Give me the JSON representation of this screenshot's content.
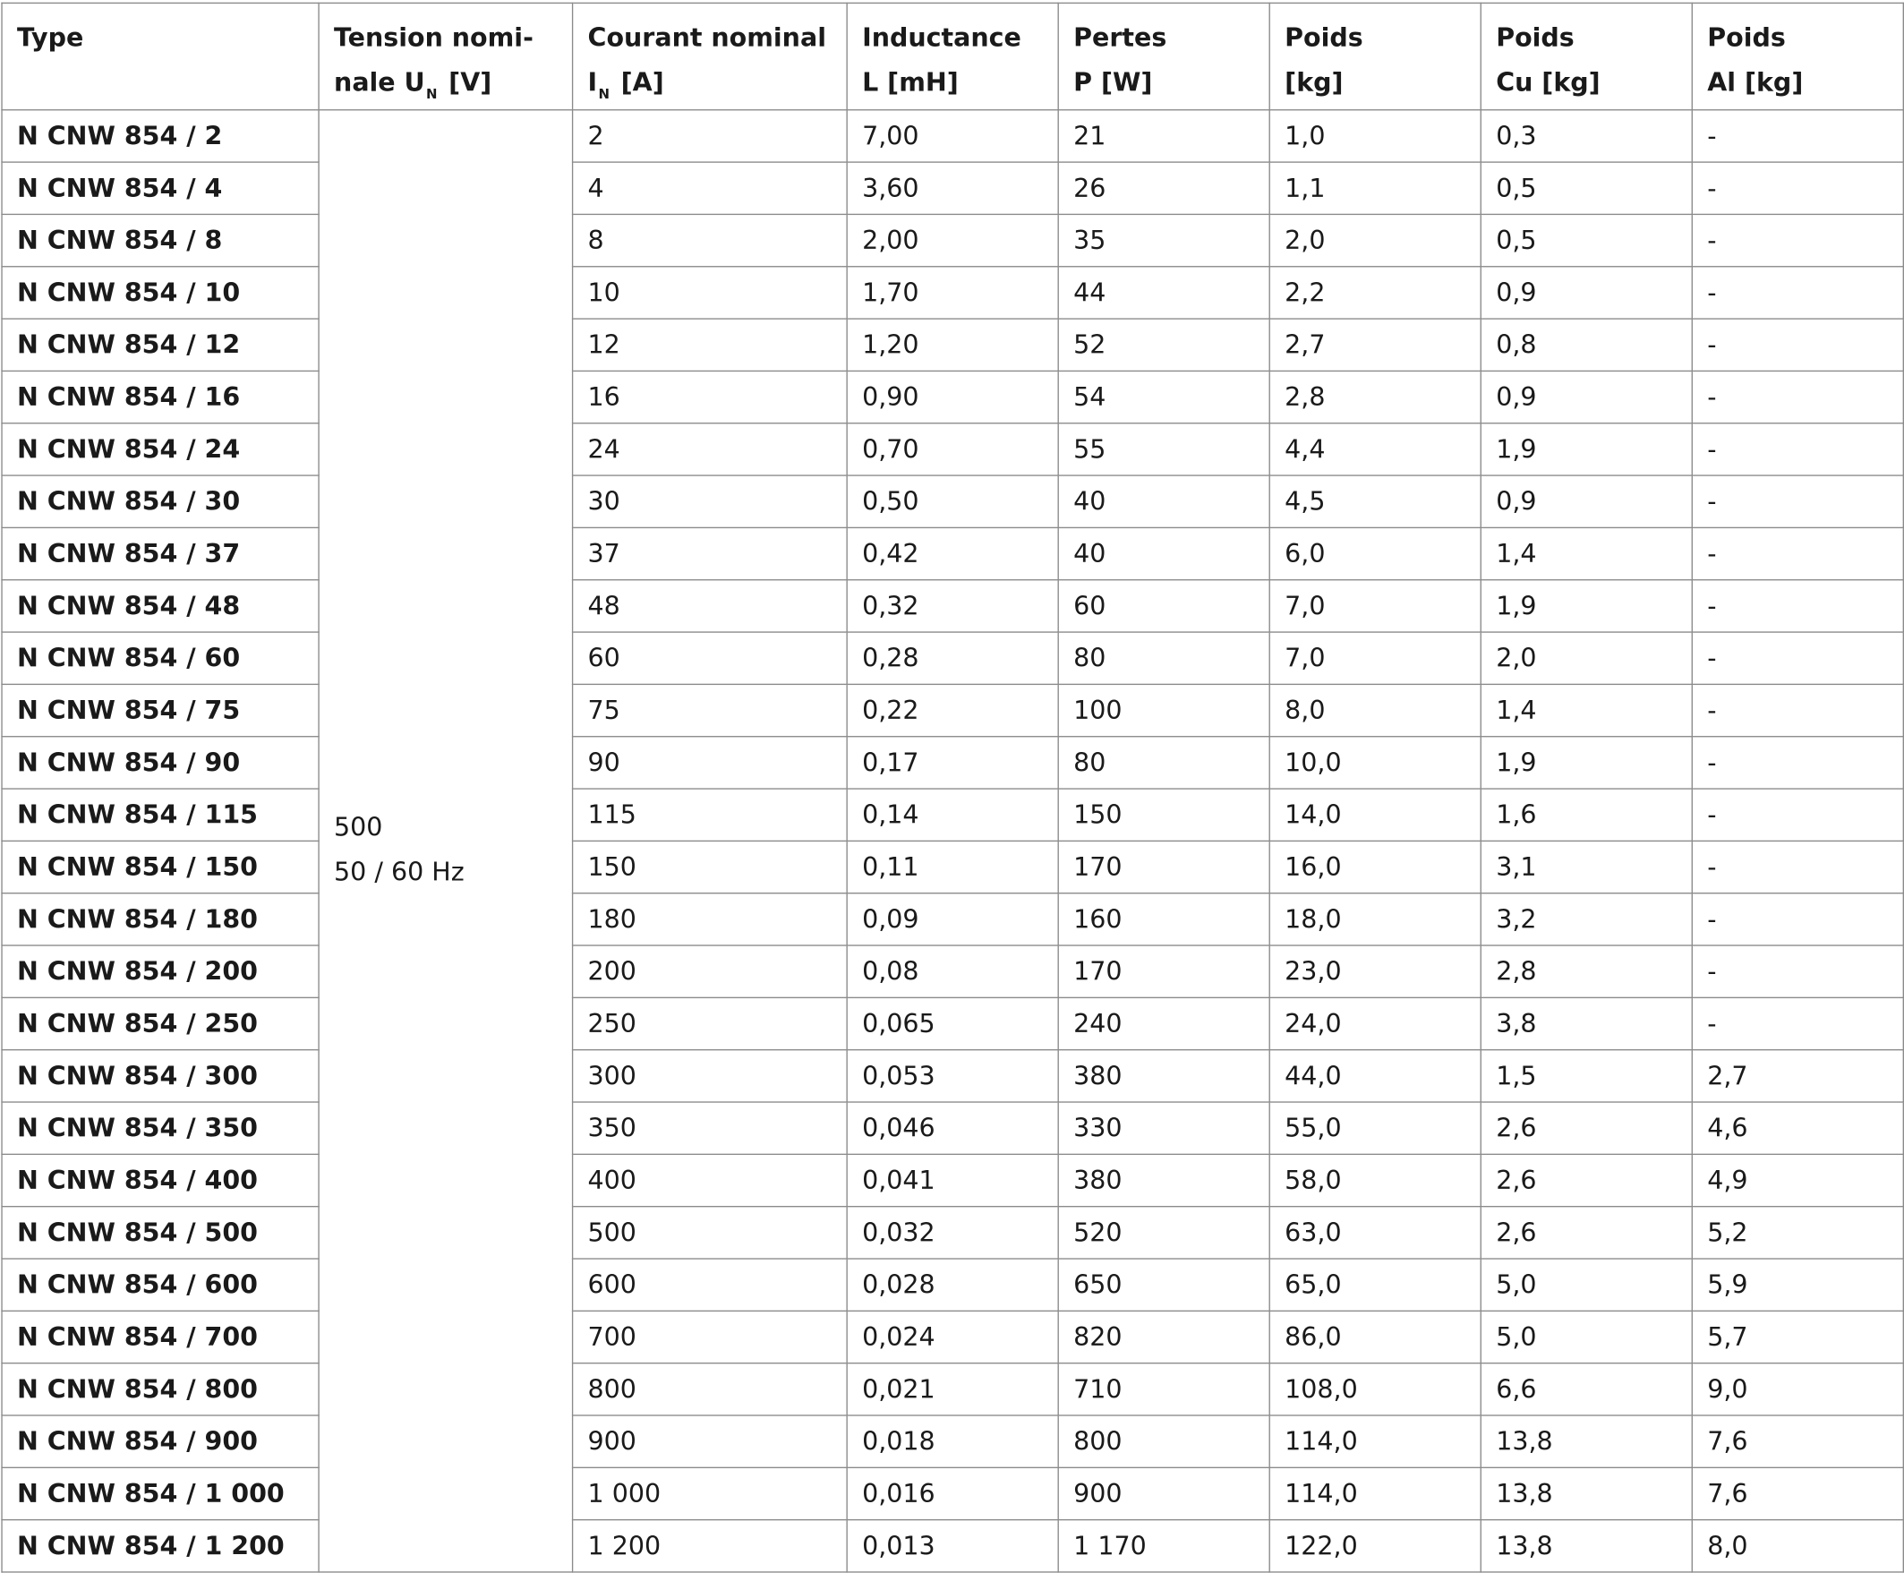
{
  "table": {
    "headers": {
      "type": "Type",
      "voltage_line1": "Tension nomi-",
      "voltage_line2_pre": "nale U",
      "voltage_line2_sub": "N",
      "voltage_line2_post": " [V]",
      "current_line1": "Courant nominal",
      "current_line2_pre": "I",
      "current_line2_sub": "N",
      "current_line2_post": " [A]",
      "inductance_line1": "Inductance",
      "inductance_line2": "L [mH]",
      "losses_line1": "Pertes",
      "losses_line2": "P [W]",
      "weight_line1": "Poids",
      "weight_line2": "[kg]",
      "weight_cu_line1": "Poids",
      "weight_cu_line2": "Cu [kg]",
      "weight_al_line1": "Poids",
      "weight_al_line2": "Al [kg]"
    },
    "voltage_value": "500",
    "voltage_frequency": "50 / 60 Hz",
    "rows": [
      {
        "type": "N CNW 854 / 2",
        "current": "2",
        "inductance": "7,00",
        "losses": "21",
        "weight": "1,0",
        "cu": "0,3",
        "al": "-"
      },
      {
        "type": "N CNW 854 / 4",
        "current": "4",
        "inductance": "3,60",
        "losses": "26",
        "weight": "1,1",
        "cu": "0,5",
        "al": "-"
      },
      {
        "type": "N CNW 854 / 8",
        "current": "8",
        "inductance": "2,00",
        "losses": "35",
        "weight": "2,0",
        "cu": "0,5",
        "al": "-"
      },
      {
        "type": "N CNW 854 / 10",
        "current": "10",
        "inductance": "1,70",
        "losses": "44",
        "weight": "2,2",
        "cu": "0,9",
        "al": "-"
      },
      {
        "type": "N CNW 854 / 12",
        "current": "12",
        "inductance": "1,20",
        "losses": "52",
        "weight": "2,7",
        "cu": "0,8",
        "al": "-"
      },
      {
        "type": "N CNW 854 / 16",
        "current": "16",
        "inductance": "0,90",
        "losses": "54",
        "weight": "2,8",
        "cu": "0,9",
        "al": "-"
      },
      {
        "type": "N CNW 854 / 24",
        "current": "24",
        "inductance": "0,70",
        "losses": "55",
        "weight": "4,4",
        "cu": "1,9",
        "al": "-"
      },
      {
        "type": "N CNW 854 / 30",
        "current": "30",
        "inductance": "0,50",
        "losses": "40",
        "weight": "4,5",
        "cu": "0,9",
        "al": "-"
      },
      {
        "type": "N CNW 854 / 37",
        "current": "37",
        "inductance": "0,42",
        "losses": "40",
        "weight": "6,0",
        "cu": "1,4",
        "al": "-"
      },
      {
        "type": "N CNW 854 / 48",
        "current": "48",
        "inductance": "0,32",
        "losses": "60",
        "weight": "7,0",
        "cu": "1,9",
        "al": "-"
      },
      {
        "type": "N CNW 854 / 60",
        "current": "60",
        "inductance": "0,28",
        "losses": "80",
        "weight": "7,0",
        "cu": "2,0",
        "al": "-"
      },
      {
        "type": "N CNW 854 / 75",
        "current": "75",
        "inductance": "0,22",
        "losses": "100",
        "weight": "8,0",
        "cu": "1,4",
        "al": "-"
      },
      {
        "type": "N CNW 854 / 90",
        "current": "90",
        "inductance": "0,17",
        "losses": "80",
        "weight": "10,0",
        "cu": "1,9",
        "al": "-"
      },
      {
        "type": "N CNW 854 / 115",
        "current": "115",
        "inductance": "0,14",
        "losses": "150",
        "weight": "14,0",
        "cu": "1,6",
        "al": "-"
      },
      {
        "type": "N CNW 854 / 150",
        "current": "150",
        "inductance": "0,11",
        "losses": "170",
        "weight": "16,0",
        "cu": "3,1",
        "al": "-"
      },
      {
        "type": "N CNW 854 / 180",
        "current": "180",
        "inductance": "0,09",
        "losses": "160",
        "weight": "18,0",
        "cu": "3,2",
        "al": "-"
      },
      {
        "type": "N CNW 854 / 200",
        "current": "200",
        "inductance": "0,08",
        "losses": "170",
        "weight": "23,0",
        "cu": "2,8",
        "al": "-"
      },
      {
        "type": "N CNW 854 / 250",
        "current": "250",
        "inductance": "0,065",
        "losses": "240",
        "weight": "24,0",
        "cu": "3,8",
        "al": "-"
      },
      {
        "type": "N CNW 854 / 300",
        "current": "300",
        "inductance": "0,053",
        "losses": "380",
        "weight": "44,0",
        "cu": "1,5",
        "al": "2,7"
      },
      {
        "type": "N CNW 854 / 350",
        "current": "350",
        "inductance": "0,046",
        "losses": "330",
        "weight": "55,0",
        "cu": "2,6",
        "al": "4,6"
      },
      {
        "type": "N CNW 854 / 400",
        "current": "400",
        "inductance": "0,041",
        "losses": "380",
        "weight": "58,0",
        "cu": "2,6",
        "al": "4,9"
      },
      {
        "type": "N CNW 854 / 500",
        "current": "500",
        "inductance": "0,032",
        "losses": "520",
        "weight": "63,0",
        "cu": "2,6",
        "al": "5,2"
      },
      {
        "type": "N CNW 854 / 600",
        "current": "600",
        "inductance": "0,028",
        "losses": "650",
        "weight": "65,0",
        "cu": "5,0",
        "al": "5,9"
      },
      {
        "type": "N CNW 854 / 700",
        "current": "700",
        "inductance": "0,024",
        "losses": "820",
        "weight": "86,0",
        "cu": "5,0",
        "al": "5,7"
      },
      {
        "type": "N CNW 854 / 800",
        "current": "800",
        "inductance": "0,021",
        "losses": "710",
        "weight": "108,0",
        "cu": "6,6",
        "al": "9,0"
      },
      {
        "type": "N CNW 854 / 900",
        "current": "900",
        "inductance": "0,018",
        "losses": "800",
        "weight": "114,0",
        "cu": "13,8",
        "al": "7,6"
      },
      {
        "type": "N CNW 854 / 1 000",
        "current": "1 000",
        "inductance": "0,016",
        "losses": "900",
        "weight": "114,0",
        "cu": "13,8",
        "al": "7,6"
      },
      {
        "type": "N CNW 854 / 1 200",
        "current": "1 200",
        "inductance": "0,013",
        "losses": "1 170",
        "weight": "122,0",
        "cu": "13,8",
        "al": "8,0"
      }
    ]
  }
}
